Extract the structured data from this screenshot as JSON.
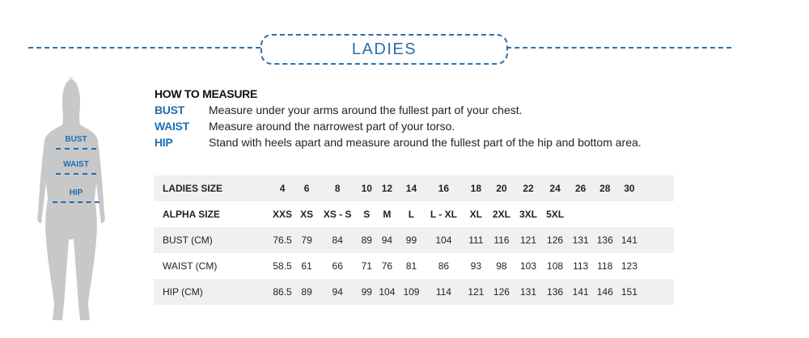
{
  "title": "LADIES",
  "figure_labels": [
    "BUST",
    "WAIST",
    "HIP"
  ],
  "how_to": {
    "heading": "HOW TO MEASURE",
    "items": [
      {
        "label": "BUST",
        "text": "Measure under your arms around the fullest part of your chest."
      },
      {
        "label": "WAIST",
        "text": "Measure around the narrowest part of your torso."
      },
      {
        "label": "HIP",
        "text": "Stand with heels apart and measure around the fullest part of the hip and bottom area."
      }
    ]
  },
  "table": {
    "rows": [
      {
        "header": "LADIES SIZE",
        "values": [
          "4",
          "6",
          "8",
          "10",
          "12",
          "14",
          "16",
          "18",
          "20",
          "22",
          "24",
          "26",
          "28",
          "30"
        ]
      },
      {
        "header": "ALPHA SIZE",
        "values": [
          "XXS",
          "XS",
          "XS - S",
          "S",
          "M",
          "L",
          "L - XL",
          "XL",
          "2XL",
          "3XL",
          "5XL",
          "",
          "",
          ""
        ]
      },
      {
        "header": "BUST (CM)",
        "values": [
          "76.5",
          "79",
          "84",
          "89",
          "94",
          "99",
          "104",
          "111",
          "116",
          "121",
          "126",
          "131",
          "136",
          "141"
        ]
      },
      {
        "header": "WAIST (CM)",
        "values": [
          "58.5",
          "61",
          "66",
          "71",
          "76",
          "81",
          "86",
          "93",
          "98",
          "103",
          "108",
          "113",
          "118",
          "123"
        ]
      },
      {
        "header": "HIP (CM)",
        "values": [
          "86.5",
          "89",
          "94",
          "99",
          "104",
          "109",
          "114",
          "121",
          "126",
          "131",
          "136",
          "141",
          "146",
          "151"
        ]
      }
    ]
  },
  "colors": {
    "accent": "#1f6fb2",
    "row_shade": "#f0f0f0",
    "figure": "#c8c8c8"
  }
}
